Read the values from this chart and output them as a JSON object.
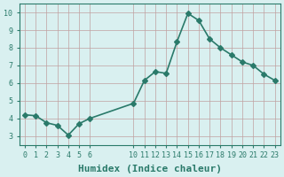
{
  "x": [
    0,
    1,
    2,
    3,
    4,
    5,
    6,
    10,
    11,
    12,
    13,
    14,
    15,
    16,
    17,
    18,
    19,
    20,
    21,
    22,
    23
  ],
  "y": [
    4.2,
    4.15,
    3.75,
    3.6,
    3.05,
    3.7,
    4.0,
    4.85,
    6.15,
    6.65,
    6.55,
    8.35,
    9.95,
    9.55,
    8.5,
    8.0,
    7.6,
    7.2,
    7.0,
    6.5,
    6.15
  ],
  "line_color": "#2a7a6a",
  "marker": "D",
  "marker_size": 3,
  "bg_color": "#d9f0f0",
  "grid_color": "#c0a0a0",
  "axis_color": "#2a7a6a",
  "xlabel": "Humidex (Indice chaleur)",
  "xlim": [
    -0.5,
    23.5
  ],
  "ylim": [
    2.5,
    10.5
  ],
  "yticks": [
    3,
    4,
    5,
    6,
    7,
    8,
    9,
    10
  ],
  "xlabel_fontsize": 8,
  "tick_fontsize": 6,
  "line_width": 1.2,
  "spine_color": "#2a7a6a"
}
